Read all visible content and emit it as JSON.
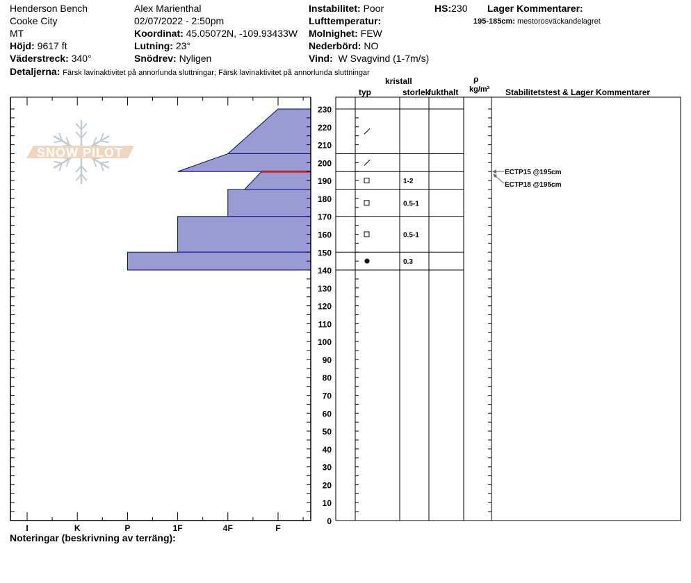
{
  "header": {
    "location": "Henderson Bench",
    "area": "Cooke City",
    "state": "MT",
    "elevation_label": "Höjd:",
    "elevation": "9617 ft",
    "aspect_label": "Väderstreck:",
    "aspect": "340°",
    "observer": "Alex Marienthal",
    "datetime": "02/07/2022 - 2:50pm",
    "coords_label": "Koordinat:",
    "coords": "45.05072N, -109.93433W",
    "slope_label": "Lutning:",
    "slope": "23°",
    "drift_label": "Snödrev:",
    "drift": "Nyligen",
    "instability_label": "Instabilitet:",
    "instability": "Poor",
    "airtemp_label": "Lufttemperatur:",
    "airtemp": "",
    "sky_label": "Molnighet:",
    "sky": "FEW",
    "precip_label": "Nederbörd:",
    "precip": "NO",
    "wind_label": "Vind:",
    "wind": "W Svagvind (1-7m/s)",
    "hs_label": "HS:",
    "hs": "230",
    "layer_comments_label": "Lager Kommentarer:",
    "layer_comment_range": "195-185cm:",
    "layer_comment": "mestorosväckandelagret",
    "details_label": "Detaljerna:",
    "details": "Färsk lavinaktivitet på annorlunda sluttningar; Färsk lavinaktivitet på annorlunda sluttningar"
  },
  "columns": {
    "crystal": "kristall",
    "type": "typ",
    "size": "storlek",
    "moisture": "fukthalt",
    "rho": "ρ",
    "density": "kg/m³",
    "stability": "Stabilitetstest & Lager Kommentarer"
  },
  "logo_text": "SNOW PILOT",
  "notes_label": "Noteringar (beskrivning av terräng):",
  "colors": {
    "layer_fill": "#9b9bd4",
    "layer_stroke": "#00008b",
    "weak_layer": "#c0282d"
  },
  "chart_data": {
    "type": "snow-profile",
    "y_axis": {
      "min": 0,
      "max": 230,
      "step": 10,
      "unit": "cm"
    },
    "hardness_ticks": [
      "I",
      "K",
      "P",
      "1F",
      "4F",
      "F"
    ],
    "layers": [
      {
        "top": 230,
        "bottom": 205,
        "hardness_top": 5,
        "hardness_bottom": 4,
        "grain": "decomposing",
        "size": ""
      },
      {
        "top": 205,
        "bottom": 195,
        "hardness_top": 4,
        "hardness_bottom": 3,
        "grain": "decomposing",
        "size": ""
      },
      {
        "top": 195,
        "bottom": 185,
        "hardness_top": 4.67,
        "hardness_bottom": 4.33,
        "grain": "faceted",
        "size": "1-2"
      },
      {
        "top": 185,
        "bottom": 170,
        "hardness_top": 4,
        "hardness_bottom": 4,
        "grain": "faceted",
        "size": "0.5-1"
      },
      {
        "top": 170,
        "bottom": 150,
        "hardness_top": 3,
        "hardness_bottom": 3,
        "grain": "faceted",
        "size": "0.5-1"
      },
      {
        "top": 150,
        "bottom": 140,
        "hardness_top": 2,
        "hardness_bottom": 2,
        "grain": "rounded",
        "size": "0.3"
      }
    ],
    "weak_layer": 195,
    "tests": [
      {
        "label": "ECTP15 @195cm",
        "depth": 195
      },
      {
        "label": "ECTP18 @195cm",
        "depth": 195
      }
    ]
  }
}
